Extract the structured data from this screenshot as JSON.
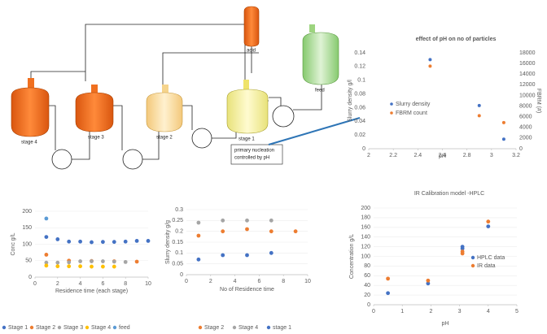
{
  "diagram": {
    "labels": [
      "stage 4",
      "stage 3",
      "stage 2",
      "stage 1",
      "acid",
      "feed",
      "primary nucleation",
      "controlled by pH"
    ]
  },
  "chart_data": [
    {
      "type": "scatter",
      "title": "effect of pH on no of particles",
      "x_label": "pH",
      "y_label": "Slurry density g/l",
      "y2_label": "FBRM (#)",
      "xlim": [
        2,
        3.2
      ],
      "xticks": [
        2,
        2.2,
        2.4,
        2.6,
        2.8,
        3,
        3.2
      ],
      "ylim": [
        0,
        0.14
      ],
      "yticks": [
        0,
        0.02,
        0.04,
        0.06,
        0.08,
        0.1,
        0.12,
        0.14
      ],
      "y2lim": [
        0,
        18000
      ],
      "y2ticks": [
        0,
        2000,
        4000,
        6000,
        8000,
        10000,
        12000,
        14000,
        16000,
        18000
      ],
      "grid": false,
      "legend": "inside",
      "series": [
        {
          "name": "Slurry density",
          "color": "#4472c4",
          "x": [
            2.5,
            2.9,
            3.1
          ],
          "values": [
            0.13,
            0.063,
            0.014
          ]
        },
        {
          "name": "FBRM count",
          "color": "#ed7d31",
          "axis": "y2",
          "x": [
            2.5,
            2.9,
            3.1
          ],
          "values": [
            15500,
            6200,
            4900
          ]
        }
      ]
    },
    {
      "type": "scatter",
      "x_label": "Residence time (each stage)",
      "y_label": "Conc g/L",
      "xlim": [
        0,
        10
      ],
      "xticks": [
        0,
        2,
        4,
        6,
        8,
        10
      ],
      "ylim": [
        0,
        200
      ],
      "yticks": [
        0,
        50,
        100,
        150,
        200
      ],
      "grid": true,
      "legend": "bottom",
      "series": [
        {
          "name": "Stage 1",
          "color": "#4472c4",
          "x": [
            1,
            2,
            3,
            4,
            5,
            6,
            7,
            8,
            9,
            10
          ],
          "values": [
            122,
            115,
            108,
            108,
            106,
            107,
            107,
            108,
            110,
            110
          ]
        },
        {
          "name": "Stage 2",
          "color": "#ed7d31",
          "x": [
            1,
            3,
            5,
            7,
            9
          ],
          "values": [
            68,
            50,
            49,
            48,
            47
          ]
        },
        {
          "name": "Stage 3",
          "color": "#a5a5a5",
          "x": [
            1,
            2,
            3,
            4,
            5,
            6,
            7,
            8
          ],
          "values": [
            44,
            44,
            45,
            48,
            48,
            48,
            47,
            46
          ]
        },
        {
          "name": "Stage 4",
          "color": "#ffc000",
          "x": [
            1,
            2,
            3,
            4,
            5,
            6,
            7
          ],
          "values": [
            35,
            33,
            33,
            33,
            32,
            32,
            32
          ]
        },
        {
          "name": "feed",
          "color": "#5b9bd5",
          "x": [
            1
          ],
          "values": [
            178
          ]
        }
      ]
    },
    {
      "type": "scatter",
      "x_label": "No of Residence time",
      "y_label": "Slurry density g/g",
      "xlim": [
        0,
        10
      ],
      "xticks": [
        0,
        2,
        4,
        6,
        8,
        10
      ],
      "ylim": [
        0,
        0.3
      ],
      "yticks": [
        0,
        0.05,
        0.1,
        0.15,
        0.2,
        0.25,
        0.3
      ],
      "grid": true,
      "legend": "bottom",
      "series": [
        {
          "name": "Stage 2",
          "color": "#ed7d31",
          "x": [
            1,
            3,
            5,
            7,
            9
          ],
          "values": [
            0.18,
            0.2,
            0.21,
            0.2,
            0.2
          ]
        },
        {
          "name": "Stage 4",
          "color": "#a5a5a5",
          "x": [
            1,
            3,
            5,
            7
          ],
          "values": [
            0.24,
            0.25,
            0.25,
            0.25
          ]
        },
        {
          "name": "stage 1",
          "color": "#4472c4",
          "x": [
            1,
            3,
            5,
            7
          ],
          "values": [
            0.07,
            0.09,
            0.09,
            0.1
          ]
        }
      ]
    },
    {
      "type": "scatter",
      "title": "IR Calibration model -HPLC",
      "x_label": "pH",
      "y_label": "Concentration g/L",
      "xlim": [
        0,
        5
      ],
      "xticks": [
        0,
        1,
        2,
        3,
        4,
        5
      ],
      "ylim": [
        0,
        200
      ],
      "yticks": [
        0,
        20,
        40,
        60,
        80,
        100,
        120,
        140,
        160,
        180,
        200
      ],
      "grid": true,
      "legend": "right",
      "series": [
        {
          "name": "HPLC data",
          "color": "#4472c4",
          "x": [
            0.5,
            1.9,
            3.1,
            3.1,
            4
          ],
          "values": [
            24,
            44,
            120,
            116,
            162
          ]
        },
        {
          "name": "IR data",
          "color": "#ed7d31",
          "x": [
            0.5,
            1.9,
            3.1,
            3.1,
            4
          ],
          "values": [
            54,
            50,
            110,
            106,
            172
          ]
        }
      ]
    }
  ]
}
